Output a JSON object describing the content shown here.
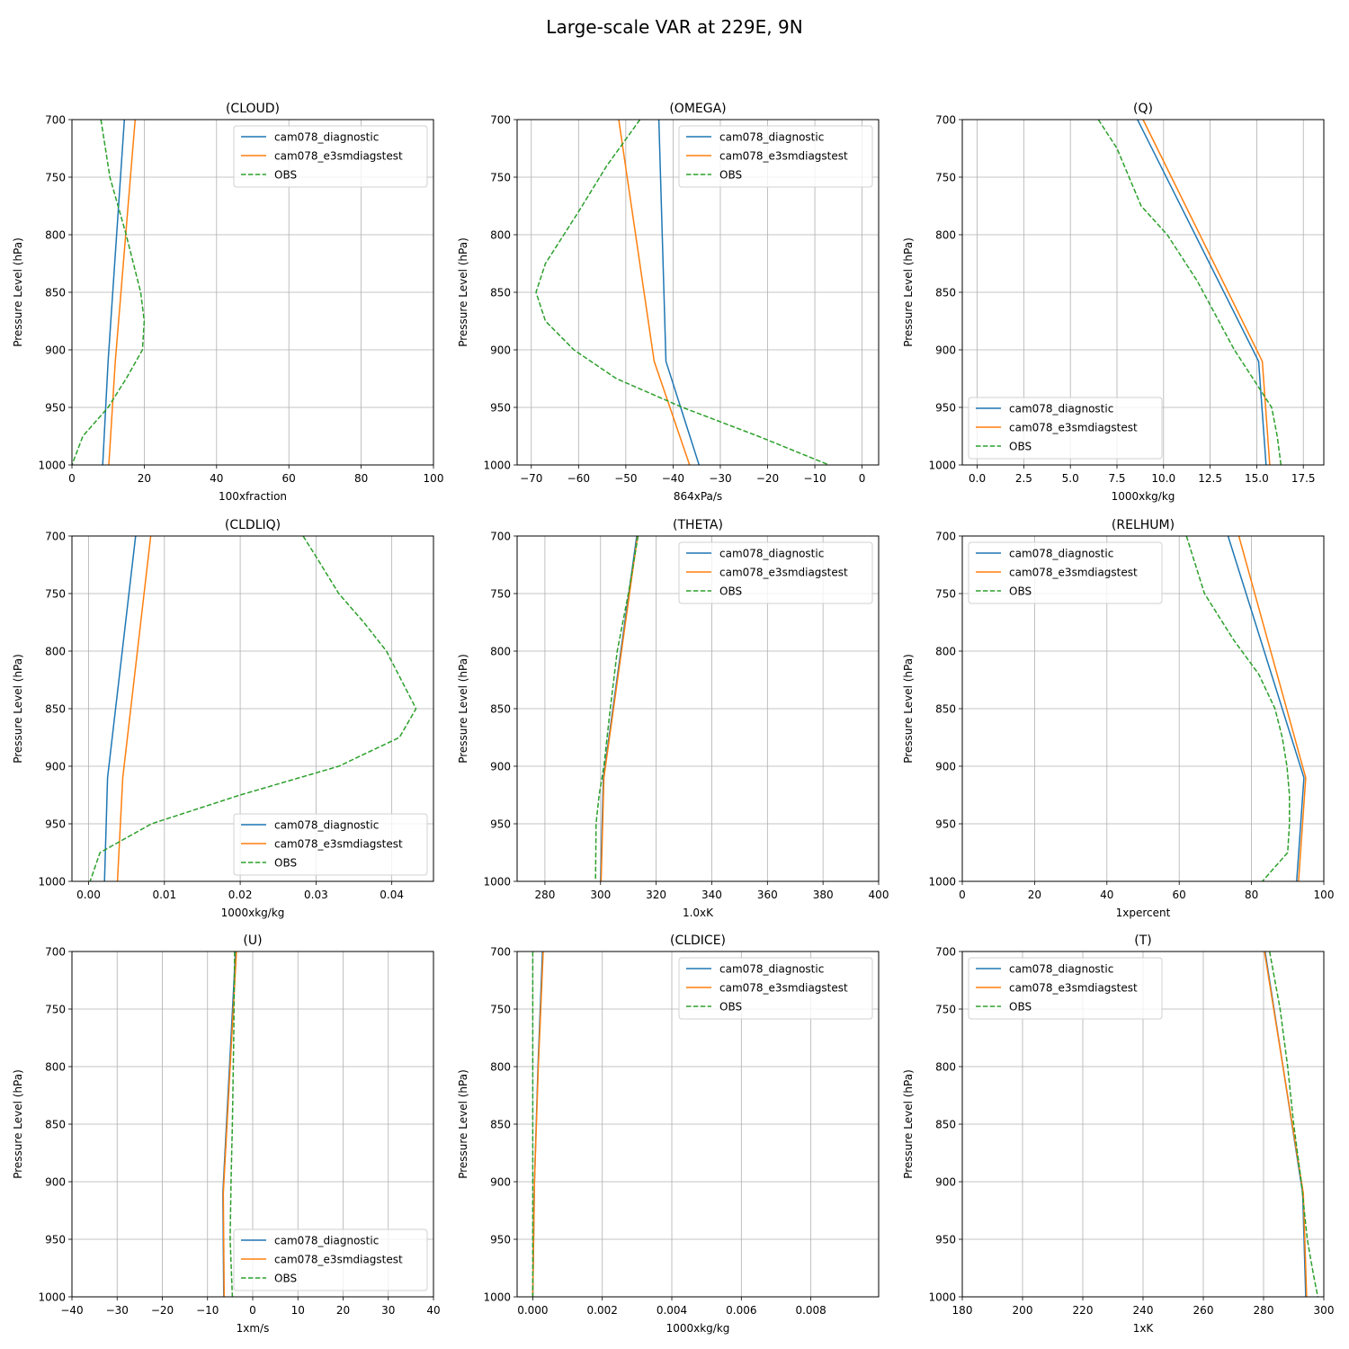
{
  "figure": {
    "title": "Large-scale VAR at 229E, 9N",
    "ylabel": "Pressure Level (hPa)",
    "colors": {
      "cam078_diagnostic": "#1f77b4",
      "cam078_e3smdiagstest": "#ff7f0e",
      "OBS": "#2ca02c"
    }
  },
  "chart_data": [
    {
      "type": "line",
      "title": "(CLOUD)",
      "xlabel": "100xfraction",
      "ylabel": "Pressure Level (hPa)",
      "xlim": [
        0,
        100
      ],
      "ylim": [
        1000,
        700
      ],
      "xticks": [
        0,
        20,
        40,
        60,
        80,
        100
      ],
      "xtick_labels": [
        "0",
        "20",
        "40",
        "60",
        "80",
        "100"
      ],
      "yticks": [
        700,
        750,
        800,
        850,
        900,
        950,
        1000
      ],
      "ytick_labels": [
        "700",
        "750",
        "800",
        "850",
        "900",
        "950",
        "1000"
      ],
      "grid": true,
      "legend": "upper right",
      "series": [
        {
          "name": "cam078_diagnostic",
          "style": "solid",
          "x": [
            14.5,
            10,
            8.5
          ],
          "y": [
            700,
            910,
            1000
          ]
        },
        {
          "name": "cam078_e3smdiagstest",
          "style": "solid",
          "x": [
            17.5,
            12,
            10.2
          ],
          "y": [
            700,
            910,
            1000
          ]
        },
        {
          "name": "OBS",
          "style": "dashed",
          "x": [
            8,
            10.5,
            15,
            19,
            20,
            19.5,
            15,
            10,
            3,
            0
          ],
          "y": [
            700,
            750,
            800,
            850,
            875,
            900,
            925,
            950,
            975,
            1000
          ]
        }
      ]
    },
    {
      "type": "line",
      "title": "(OMEGA)",
      "xlabel": "864xPa/s",
      "ylabel": "Pressure Level (hPa)",
      "xlim": [
        -73,
        3.5
      ],
      "ylim": [
        1000,
        700
      ],
      "xticks": [
        -70,
        -60,
        -50,
        -40,
        -30,
        -20,
        -10,
        0
      ],
      "xtick_labels": [
        "−70",
        "−60",
        "−50",
        "−40",
        "−30",
        "−20",
        "−10",
        "0"
      ],
      "yticks": [
        700,
        750,
        800,
        850,
        900,
        950,
        1000
      ],
      "ytick_labels": [
        "700",
        "750",
        "800",
        "850",
        "900",
        "950",
        "1000"
      ],
      "grid": true,
      "legend": "upper right",
      "series": [
        {
          "name": "cam078_diagnostic",
          "style": "solid",
          "x": [
            -43,
            -41.5,
            -34.5
          ],
          "y": [
            700,
            910,
            1000
          ]
        },
        {
          "name": "cam078_e3smdiagstest",
          "style": "solid",
          "x": [
            -51.5,
            -44,
            -36.5
          ],
          "y": [
            700,
            910,
            1000
          ]
        },
        {
          "name": "OBS",
          "style": "dashed",
          "x": [
            -47,
            -54,
            -60,
            -67,
            -69,
            -67,
            -61,
            -52,
            -38,
            -22,
            -7
          ],
          "y": [
            700,
            740,
            780,
            825,
            850,
            875,
            900,
            925,
            950,
            975,
            1000
          ]
        }
      ]
    },
    {
      "type": "line",
      "title": "(Q)",
      "xlabel": "1000xkg/kg",
      "ylabel": "Pressure Level (hPa)",
      "xlim": [
        -0.8,
        18.6
      ],
      "ylim": [
        1000,
        700
      ],
      "xticks": [
        0,
        2.5,
        5,
        7.5,
        10,
        12.5,
        15,
        17.5
      ],
      "xtick_labels": [
        "0.0",
        "2.5",
        "5.0",
        "7.5",
        "10.0",
        "12.5",
        "15.0",
        "17.5"
      ],
      "yticks": [
        700,
        750,
        800,
        850,
        900,
        950,
        1000
      ],
      "ytick_labels": [
        "700",
        "750",
        "800",
        "850",
        "900",
        "950",
        "1000"
      ],
      "grid": true,
      "legend": "lower left",
      "series": [
        {
          "name": "cam078_diagnostic",
          "style": "solid",
          "x": [
            8.6,
            15.1,
            15.5
          ],
          "y": [
            700,
            910,
            1000
          ]
        },
        {
          "name": "cam078_e3smdiagstest",
          "style": "solid",
          "x": [
            8.9,
            15.3,
            15.7
          ],
          "y": [
            700,
            910,
            1000
          ]
        },
        {
          "name": "OBS",
          "style": "dashed",
          "x": [
            6.5,
            7.5,
            8.8,
            10.2,
            11.8,
            12.8,
            13.8,
            14.8,
            15.8,
            16.1,
            16.3
          ],
          "y": [
            700,
            725,
            775,
            800,
            840,
            870,
            900,
            925,
            950,
            975,
            1000
          ]
        }
      ]
    },
    {
      "type": "line",
      "title": "(CLDLIQ)",
      "xlabel": "1000xkg/kg",
      "ylabel": "Pressure Level (hPa)",
      "xlim": [
        -0.0022,
        0.0455
      ],
      "ylim": [
        1000,
        700
      ],
      "xticks": [
        0,
        0.01,
        0.02,
        0.03,
        0.04
      ],
      "xtick_labels": [
        "0.00",
        "0.01",
        "0.02",
        "0.03",
        "0.04"
      ],
      "yticks": [
        700,
        750,
        800,
        850,
        900,
        950,
        1000
      ],
      "ytick_labels": [
        "700",
        "750",
        "800",
        "850",
        "900",
        "950",
        "1000"
      ],
      "grid": true,
      "legend": "lower right",
      "series": [
        {
          "name": "cam078_diagnostic",
          "style": "solid",
          "x": [
            0.0062,
            0.0025,
            0.0021
          ],
          "y": [
            700,
            910,
            1000
          ]
        },
        {
          "name": "cam078_e3smdiagstest",
          "style": "solid",
          "x": [
            0.0082,
            0.0045,
            0.0038
          ],
          "y": [
            700,
            910,
            1000
          ]
        },
        {
          "name": "OBS",
          "style": "dashed",
          "x": [
            0.0283,
            0.0302,
            0.033,
            0.0363,
            0.0393,
            0.0432,
            0.041,
            0.033,
            0.02,
            0.0083,
            0.0015,
            0.0002
          ],
          "y": [
            700,
            720,
            750,
            775,
            800,
            850,
            875,
            900,
            925,
            950,
            975,
            1000
          ]
        }
      ]
    },
    {
      "type": "line",
      "title": "(THETA)",
      "xlabel": "1.0xK",
      "ylabel": "Pressure Level (hPa)",
      "xlim": [
        270,
        400
      ],
      "ylim": [
        1000,
        700
      ],
      "xticks": [
        280,
        300,
        320,
        340,
        360,
        380,
        400
      ],
      "xtick_labels": [
        "280",
        "300",
        "320",
        "340",
        "360",
        "380",
        "400"
      ],
      "yticks": [
        700,
        750,
        800,
        850,
        900,
        950,
        1000
      ],
      "ytick_labels": [
        "700",
        "750",
        "800",
        "850",
        "900",
        "950",
        "1000"
      ],
      "grid": true,
      "legend": "upper right",
      "series": [
        {
          "name": "cam078_diagnostic",
          "style": "solid",
          "x": [
            313,
            301,
            300
          ],
          "y": [
            700,
            910,
            1000
          ]
        },
        {
          "name": "cam078_e3smdiagstest",
          "style": "solid",
          "x": [
            313.3,
            301.2,
            300.2
          ],
          "y": [
            700,
            910,
            1000
          ]
        },
        {
          "name": "OBS",
          "style": "dashed",
          "x": [
            313.5,
            310,
            306,
            303.5,
            301.2,
            299.5,
            298.4,
            298.2
          ],
          "y": [
            700,
            750,
            800,
            850,
            900,
            925,
            950,
            1000
          ]
        }
      ]
    },
    {
      "type": "line",
      "title": "(RELHUM)",
      "xlabel": "1xpercent",
      "ylabel": "Pressure Level (hPa)",
      "xlim": [
        0,
        100
      ],
      "ylim": [
        1000,
        700
      ],
      "xticks": [
        0,
        20,
        40,
        60,
        80,
        100
      ],
      "xtick_labels": [
        "0",
        "20",
        "40",
        "60",
        "80",
        "100"
      ],
      "yticks": [
        700,
        750,
        800,
        850,
        900,
        950,
        1000
      ],
      "ytick_labels": [
        "700",
        "750",
        "800",
        "850",
        "900",
        "950",
        "1000"
      ],
      "grid": true,
      "legend": "upper left",
      "series": [
        {
          "name": "cam078_diagnostic",
          "style": "solid",
          "x": [
            73.5,
            94.5,
            92.5
          ],
          "y": [
            700,
            910,
            1000
          ]
        },
        {
          "name": "cam078_e3smdiagstest",
          "style": "solid",
          "x": [
            76.5,
            95,
            93
          ],
          "y": [
            700,
            910,
            1000
          ]
        },
        {
          "name": "OBS",
          "style": "dashed",
          "x": [
            62,
            67,
            75,
            82,
            86.5,
            88.5,
            89.8,
            90.5,
            90.5,
            90,
            83
          ],
          "y": [
            700,
            750,
            790,
            820,
            850,
            875,
            900,
            925,
            950,
            975,
            1000
          ]
        }
      ]
    },
    {
      "type": "line",
      "title": "(U)",
      "xlabel": "1xm/s",
      "ylabel": "Pressure Level (hPa)",
      "xlim": [
        -40,
        40
      ],
      "ylim": [
        1000,
        700
      ],
      "xticks": [
        -40,
        -30,
        -20,
        -10,
        0,
        10,
        20,
        30,
        40
      ],
      "xtick_labels": [
        "−40",
        "−30",
        "−20",
        "−10",
        "0",
        "10",
        "20",
        "30",
        "40"
      ],
      "yticks": [
        700,
        750,
        800,
        850,
        900,
        950,
        1000
      ],
      "ytick_labels": [
        "700",
        "750",
        "800",
        "850",
        "900",
        "950",
        "1000"
      ],
      "grid": true,
      "legend": "lower right",
      "series": [
        {
          "name": "cam078_diagnostic",
          "style": "solid",
          "x": [
            -3.8,
            -6.6,
            -6.4
          ],
          "y": [
            700,
            910,
            1000
          ]
        },
        {
          "name": "cam078_e3smdiagstest",
          "style": "solid",
          "x": [
            -3.6,
            -6.5,
            -6.3
          ],
          "y": [
            700,
            910,
            1000
          ]
        },
        {
          "name": "OBS",
          "style": "dashed",
          "x": [
            -4,
            -4.2,
            -4.5,
            -4.8,
            -5.0,
            -4.5
          ],
          "y": [
            700,
            775,
            850,
            900,
            950,
            1000
          ]
        }
      ]
    },
    {
      "type": "line",
      "title": "(CLDICE)",
      "xlabel": "1000xkg/kg",
      "ylabel": "Pressure Level (hPa)",
      "xlim": [
        -0.00045,
        0.00995
      ],
      "ylim": [
        1000,
        700
      ],
      "xticks": [
        0,
        0.002,
        0.004,
        0.006,
        0.008
      ],
      "xtick_labels": [
        "0.000",
        "0.002",
        "0.004",
        "0.006",
        "0.008"
      ],
      "yticks": [
        700,
        750,
        800,
        850,
        900,
        950,
        1000
      ],
      "ytick_labels": [
        "700",
        "750",
        "800",
        "850",
        "900",
        "950",
        "1000"
      ],
      "grid": true,
      "legend": "upper right",
      "series": [
        {
          "name": "cam078_diagnostic",
          "style": "solid",
          "x": [
            0.00028,
            0.00015,
            5e-05,
            0.0
          ],
          "y": [
            700,
            800,
            900,
            1000
          ]
        },
        {
          "name": "cam078_e3smdiagstest",
          "style": "solid",
          "x": [
            0.0003,
            0.00016,
            5e-05,
            0.0
          ],
          "y": [
            700,
            800,
            900,
            1000
          ]
        },
        {
          "name": "OBS",
          "style": "dashed",
          "x": [
            0,
            0
          ],
          "y": [
            700,
            1000
          ]
        }
      ]
    },
    {
      "type": "line",
      "title": "(T)",
      "xlabel": "1xK",
      "ylabel": "Pressure Level (hPa)",
      "xlim": [
        180,
        300
      ],
      "ylim": [
        1000,
        700
      ],
      "xticks": [
        180,
        200,
        220,
        240,
        260,
        280,
        300
      ],
      "xtick_labels": [
        "180",
        "200",
        "220",
        "240",
        "260",
        "280",
        "300"
      ],
      "yticks": [
        700,
        750,
        800,
        850,
        900,
        950,
        1000
      ],
      "ytick_labels": [
        "700",
        "750",
        "800",
        "850",
        "900",
        "950",
        "1000"
      ],
      "grid": true,
      "legend": "upper left",
      "series": [
        {
          "name": "cam078_diagnostic",
          "style": "solid",
          "x": [
            280.5,
            293,
            294
          ],
          "y": [
            700,
            910,
            1000
          ]
        },
        {
          "name": "cam078_e3smdiagstest",
          "style": "solid",
          "x": [
            280.3,
            293.2,
            294.3
          ],
          "y": [
            700,
            910,
            1000
          ]
        },
        {
          "name": "OBS",
          "style": "dashed",
          "x": [
            282,
            285.5,
            288,
            290,
            292.5,
            294.5,
            296.5,
            298
          ],
          "y": [
            700,
            750,
            800,
            850,
            900,
            950,
            980,
            1000
          ]
        }
      ]
    }
  ]
}
